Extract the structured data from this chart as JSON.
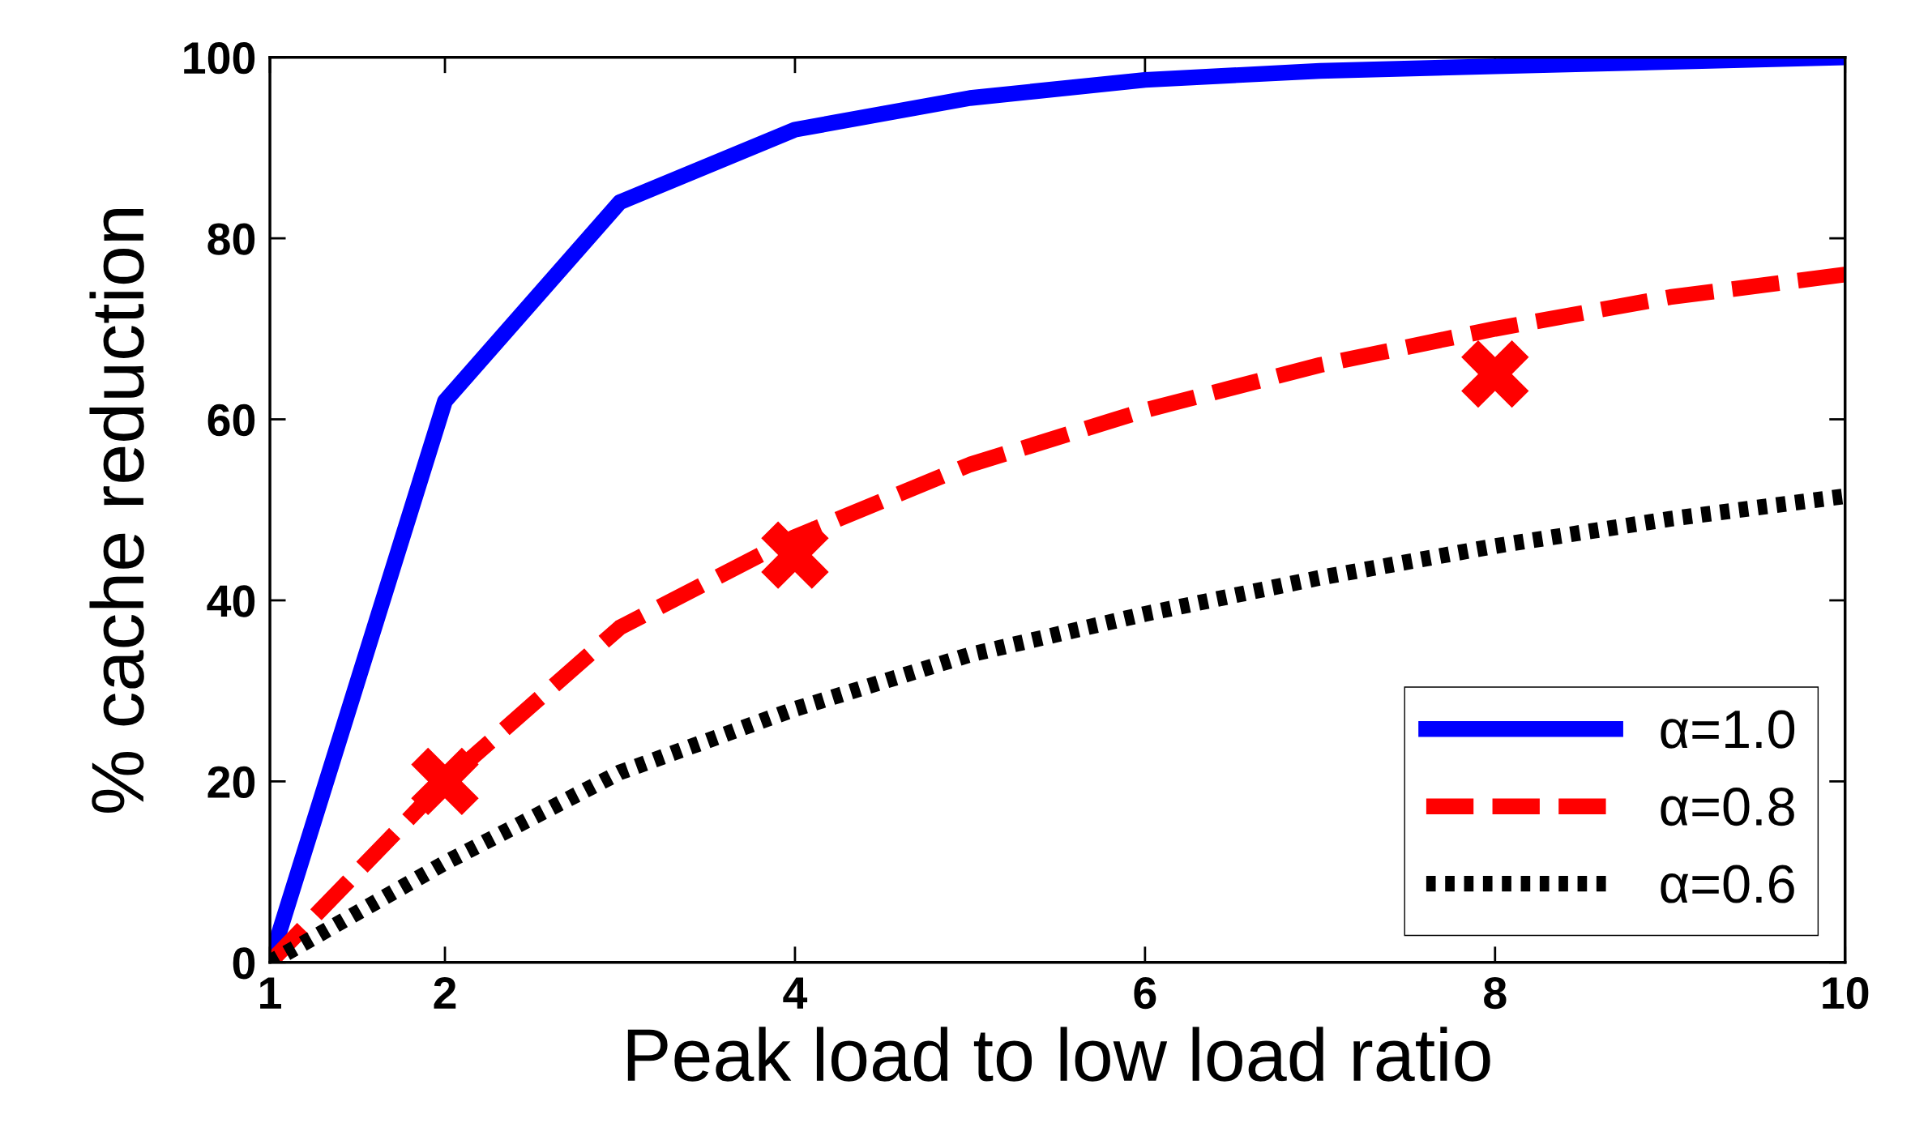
{
  "chart_data": {
    "type": "line",
    "xlabel": "Peak load to low load ratio",
    "ylabel": "% cache reduction",
    "x": [
      1,
      2,
      3,
      4,
      5,
      6,
      7,
      8,
      9,
      10
    ],
    "series": [
      {
        "name": "α=1.0",
        "color": "#0000ff",
        "line_style": "solid",
        "values": [
          0,
          62,
          84,
          92,
          95.5,
          97.5,
          98.5,
          99,
          99.5,
          100
        ]
      },
      {
        "name": "α=0.8",
        "color": "#ff0000",
        "line_style": "dashed",
        "values": [
          0,
          20,
          37,
          47,
          55,
          61,
          66,
          70,
          73.5,
          76
        ]
      },
      {
        "name": "α=0.6",
        "color": "#000000",
        "line_style": "dotted",
        "values": [
          0,
          11,
          21,
          28,
          34,
          38.5,
          42.5,
          46,
          49,
          51.5
        ]
      },
      {
        "type": "scatter",
        "color": "#ff0000",
        "marker": "cross",
        "x": [
          2,
          4,
          8
        ],
        "values": [
          20,
          45,
          65
        ]
      }
    ],
    "xlim": [
      1,
      10
    ],
    "xticks": [
      1,
      2,
      4,
      6,
      8,
      10
    ],
    "ylim": [
      0,
      100
    ],
    "yticks": [
      0,
      20,
      40,
      60,
      80,
      100
    ],
    "grid": false,
    "legend": "bottom right"
  }
}
